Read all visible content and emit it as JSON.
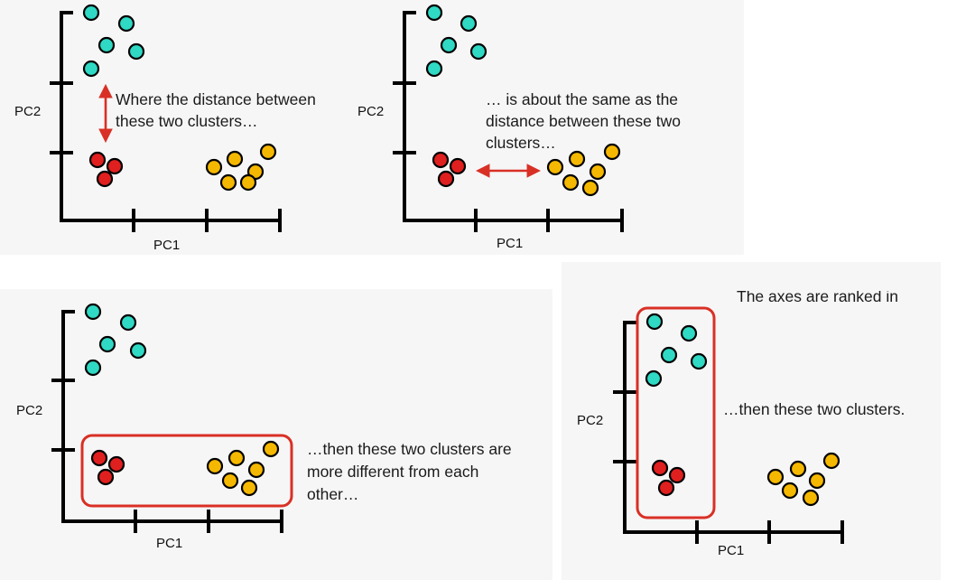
{
  "colors": {
    "teal": "#2fd9c4",
    "red": "#e01f1f",
    "orange": "#f5b800",
    "accent": "#d93025"
  },
  "labels": {
    "pc1": "PC1",
    "pc2": "PC2"
  },
  "panels": [
    {
      "id": "p1",
      "caption_lines": [
        "Where the distance between",
        "these two clusters…"
      ],
      "annotation": "vertical-arrow"
    },
    {
      "id": "p2",
      "caption_lines": [
        "… is about the same as the",
        "distance between these two",
        "clusters…"
      ],
      "annotation": "horizontal-arrow"
    },
    {
      "id": "p3",
      "caption_lines": [
        "…then these two clusters are",
        "more different from each",
        "other…"
      ],
      "annotation": "horizontal-box"
    },
    {
      "id": "p4",
      "caption_lines": [
        "…then these two clusters."
      ],
      "top_text": "The axes are ranked in",
      "annotation": "vertical-box"
    }
  ],
  "clusters": [
    {
      "name": "teal-cluster",
      "color": "teal",
      "count": 5
    },
    {
      "name": "red-cluster",
      "color": "red",
      "count": 3
    },
    {
      "name": "orange-cluster",
      "color": "orange",
      "count": 6
    }
  ]
}
